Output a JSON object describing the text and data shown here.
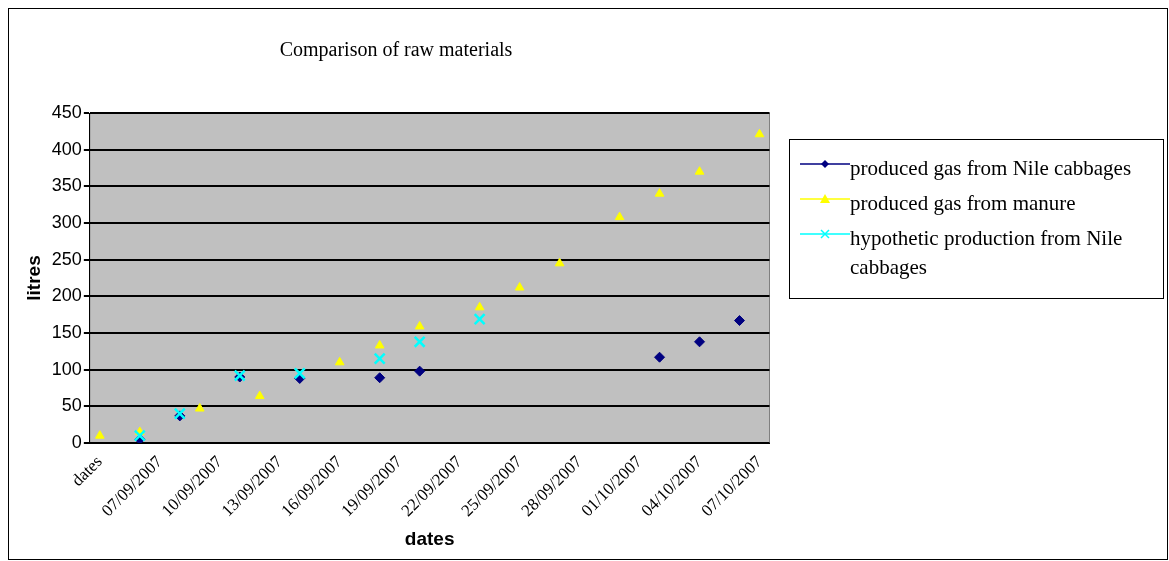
{
  "chart_data": {
    "type": "scatter",
    "title": "Comparison of raw materials",
    "xlabel": "dates",
    "ylabel": "litres",
    "categories": [
      "dates",
      null,
      null,
      "07/09/2007",
      null,
      null,
      "10/09/2007",
      null,
      null,
      "13/09/2007",
      null,
      null,
      "16/09/2007",
      null,
      null,
      "19/09/2007",
      null,
      null,
      "22/09/2007",
      null,
      null,
      "25/09/2007",
      null,
      null,
      "28/09/2007",
      null,
      null,
      "01/10/2007",
      null,
      null,
      "04/10/2007",
      null,
      null,
      "07/10/2007"
    ],
    "series": [
      {
        "name": "produced gas from Nile cabbages",
        "color": "#000080",
        "marker": "diamond",
        "values": [
          null,
          null,
          5,
          null,
          37,
          null,
          null,
          90,
          null,
          null,
          88,
          null,
          null,
          null,
          89,
          null,
          98,
          null,
          null,
          null,
          null,
          null,
          null,
          null,
          null,
          null,
          null,
          null,
          117,
          null,
          138,
          null,
          167,
          null
        ]
      },
      {
        "name": "produced gas from manure",
        "color": "#ffff00",
        "marker": "triangle",
        "values": [
          10,
          null,
          15,
          null,
          null,
          47,
          null,
          null,
          64,
          null,
          null,
          null,
          110,
          null,
          133,
          null,
          159,
          null,
          null,
          185,
          null,
          212,
          null,
          245,
          null,
          null,
          308,
          null,
          340,
          null,
          370,
          null,
          null,
          421
        ]
      },
      {
        "name": "hypothetic production from Nile cabbages",
        "color": "#00ffff",
        "marker": "cross",
        "values": [
          null,
          null,
          10,
          null,
          40,
          null,
          null,
          92,
          null,
          null,
          95,
          null,
          null,
          null,
          115,
          null,
          138,
          null,
          null,
          169,
          null,
          null,
          null,
          null,
          null,
          null,
          null,
          null,
          null,
          null,
          null,
          null,
          null,
          null
        ]
      }
    ],
    "ylim": [
      0,
      450
    ],
    "yticks": [
      0,
      50,
      100,
      150,
      200,
      250,
      300,
      350,
      400,
      450
    ],
    "grid": "y",
    "legend": "right"
  }
}
